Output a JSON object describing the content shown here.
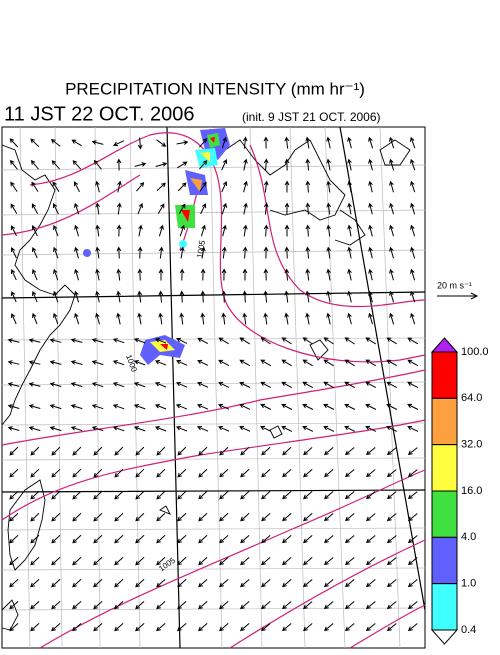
{
  "title": "PRECIPITATION INTENSITY (mm hr⁻¹)",
  "valid_time": "11 JST 22 OCT. 2006",
  "init_time": "(init. 9 JST 21 OCT. 2006)",
  "vector_scale": "20 m s⁻¹",
  "isobar_labels": [
    "1000",
    "1005",
    "1005"
  ],
  "colorbar": {
    "levels": [
      {
        "value": 100,
        "label": "100.0"
      },
      {
        "value": 64,
        "label": "64.0"
      },
      {
        "value": 32,
        "label": "32.0"
      },
      {
        "value": 16,
        "label": "16.0"
      },
      {
        "value": 4,
        "label": "4.0"
      },
      {
        "value": 1,
        "label": "1.0"
      },
      {
        "value": 0.4,
        "label": "0.4"
      }
    ],
    "colors": [
      "#b020f0",
      "#ff0000",
      "#ffa040",
      "#ffff40",
      "#40e040",
      "#6060ff",
      "#40ffff",
      "#ffffff"
    ]
  }
}
